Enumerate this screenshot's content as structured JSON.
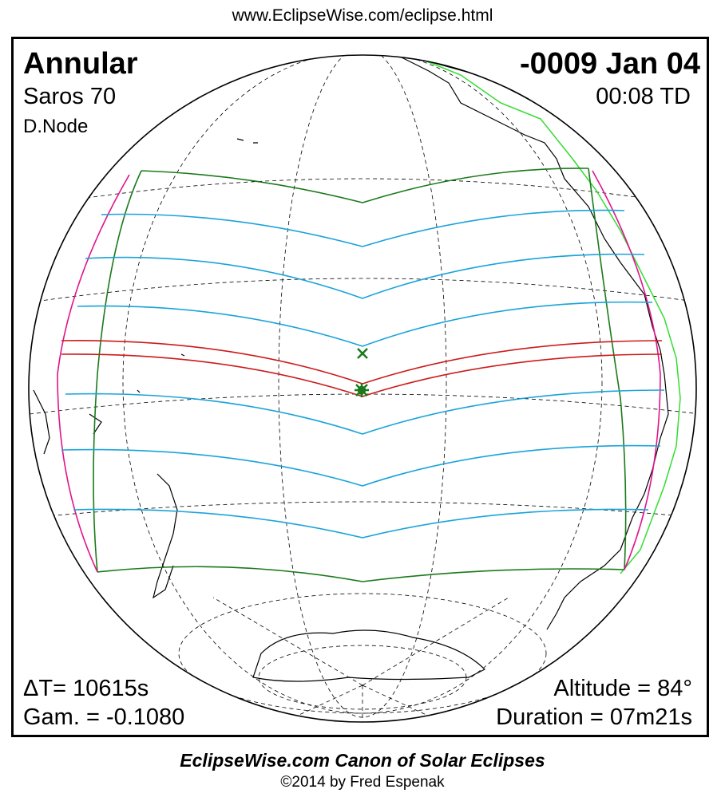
{
  "header": {
    "url": "www.EclipseWise.com/eclipse.html"
  },
  "eclipse": {
    "type": "Annular",
    "date": "-0009 Jan 04",
    "saros": "Saros  70",
    "time": "00:08 TD",
    "node": "D.Node",
    "delta_t": "ΔT=  10615s",
    "altitude": "Altitude = 84°",
    "gamma": "Gam. = -0.1080",
    "duration": "Duration = 07m21s"
  },
  "footer": {
    "title": "EclipseWise.com Canon of Solar Eclipses",
    "credit": "©2014 by Fred Espenak"
  },
  "map": {
    "colors": {
      "globe": "#000000",
      "grid": "#000000",
      "penumbral_limits": "#1a7a1a",
      "partial_lines": "#1aa3d9",
      "central_path": "#cc1a1a",
      "rise_set_curves": "#e0148c",
      "greatest_eclipse_marker": "#1a7a1a",
      "coast_highlight": "#33dd33"
    },
    "markers": [
      "greatest-eclipse-star",
      "subsolar-cross"
    ]
  }
}
